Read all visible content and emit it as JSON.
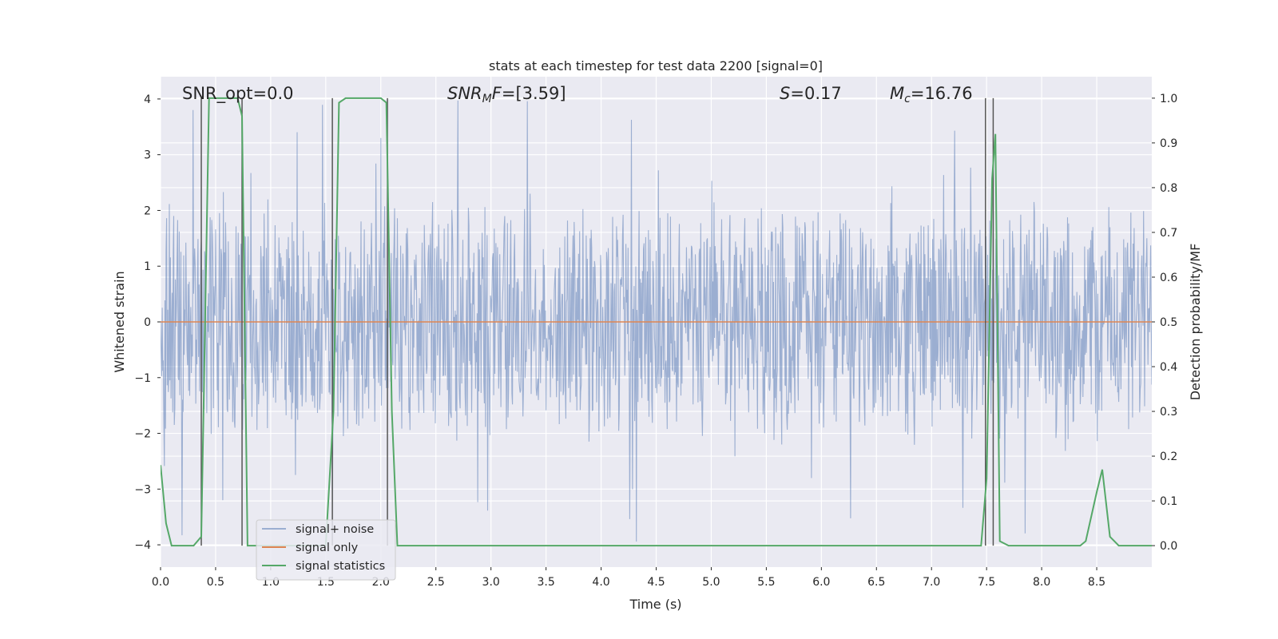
{
  "chart_data": {
    "type": "line",
    "title": "stats at each timestep for test data 2200 [signal=0]",
    "xlabel": "Time (s)",
    "ylabel": "Whitened strain",
    "y2label": "Detection probability/MF",
    "xlim": [
      0.0,
      9.0
    ],
    "ylim": [
      -4.4,
      4.4
    ],
    "y2lim": [
      -0.048,
      1.048
    ],
    "xticks": [
      0.0,
      0.5,
      1.0,
      1.5,
      2.0,
      2.5,
      3.0,
      3.5,
      4.0,
      4.5,
      5.0,
      5.5,
      6.0,
      6.5,
      7.0,
      7.5,
      8.0,
      8.5
    ],
    "xtick_labels": [
      "0.0",
      "0.5",
      "1.0",
      "1.5",
      "2.0",
      "2.5",
      "3.0",
      "3.5",
      "4.0",
      "4.5",
      "5.0",
      "5.5",
      "6.0",
      "6.5",
      "7.0",
      "7.5",
      "8.0",
      "8.5"
    ],
    "yticks": [
      -4,
      -3,
      -2,
      -1,
      0,
      1,
      2,
      3,
      4
    ],
    "ytick_labels": [
      "−4",
      "−3",
      "−2",
      "−1",
      "0",
      "1",
      "2",
      "3",
      "4"
    ],
    "y2ticks": [
      0.0,
      0.1,
      0.2,
      0.3,
      0.4,
      0.5,
      0.6,
      0.7,
      0.8,
      0.9,
      1.0
    ],
    "y2tick_labels": [
      "0.0",
      "0.1",
      "0.2",
      "0.3",
      "0.4",
      "0.5",
      "0.6",
      "0.7",
      "0.8",
      "0.9",
      "1.0"
    ],
    "grid": true,
    "legend_position": "lower-left",
    "annotations": [
      {
        "prefix": "SNR_opt=",
        "value": "0.0"
      },
      {
        "prefix": "SNR_MF=",
        "value": "[3.59]"
      },
      {
        "prefix": "S=",
        "value": "0.17"
      },
      {
        "prefix": "M_c=",
        "value": "16.76"
      }
    ],
    "noise": {
      "envelope": 2.3,
      "max_spike": 4.0,
      "min_spike": -4.0,
      "sample_rate": 200
    },
    "series": [
      {
        "name": "signal+ noise",
        "axis": "left",
        "color": "#4c72b0",
        "opacity": 0.5,
        "note_shape": "dense noise band"
      },
      {
        "name": "signal only",
        "axis": "left",
        "color": "#dd8452",
        "x": [
          0.0,
          9.0
        ],
        "y": [
          0.0,
          0.0
        ]
      },
      {
        "name": "signal statistics",
        "axis": "right",
        "color": "#55a868",
        "x": [
          0.0,
          0.05,
          0.1,
          0.3,
          0.37,
          0.39,
          0.44,
          0.5,
          0.7,
          0.74,
          0.79,
          0.85,
          1.5,
          1.57,
          1.62,
          1.68,
          1.8,
          2.0,
          2.05,
          2.1,
          2.15,
          2.2,
          6.0,
          6.1,
          6.2,
          7.45,
          7.5,
          7.55,
          7.58,
          7.62,
          7.7,
          8.35,
          8.4,
          8.5,
          8.55,
          8.62,
          8.7,
          9.0
        ],
        "y": [
          0.18,
          0.05,
          0.0,
          0.0,
          0.02,
          0.3,
          1.0,
          1.0,
          1.0,
          0.96,
          0.0,
          0.0,
          0.0,
          0.3,
          0.99,
          1.0,
          1.0,
          1.0,
          0.99,
          0.3,
          0.0,
          0.0,
          0.0,
          0.0,
          0.0,
          0.0,
          0.15,
          0.82,
          0.92,
          0.01,
          0.0,
          0.0,
          0.01,
          0.12,
          0.17,
          0.02,
          0.0,
          0.0
        ]
      }
    ],
    "vertical_markers": [
      0.37,
      0.74,
      1.56,
      2.06,
      7.49,
      7.56
    ]
  }
}
